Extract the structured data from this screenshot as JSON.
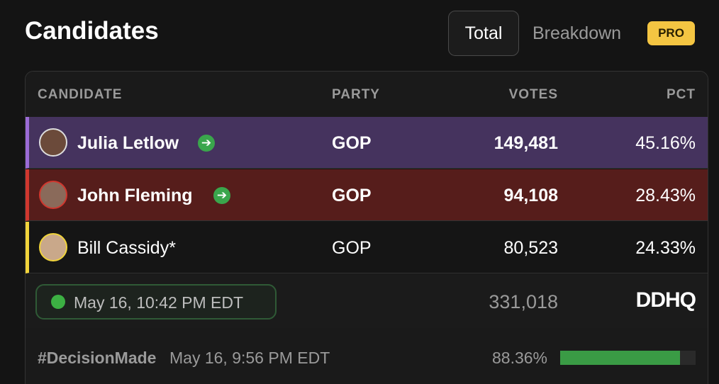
{
  "header": {
    "title": "Candidates",
    "tabs": [
      "Total",
      "Breakdown"
    ],
    "badge": "PRO"
  },
  "table": {
    "columns": [
      "CANDIDATE",
      "PARTY",
      "VOTES",
      "PCT"
    ],
    "rows": [
      [
        "Julia Letlow",
        "GOP",
        "149,481",
        "45.16%"
      ],
      [
        "John Fleming",
        "GOP",
        "94,108",
        "28.43%"
      ],
      [
        "Bill Cassidy*",
        "GOP",
        "80,523",
        "24.33%"
      ]
    ]
  },
  "footer": {
    "updated": "May 16, 10:42 PM EDT",
    "total_votes": "331,018",
    "source": "DDHQ",
    "decision": "#DecisionMade",
    "decision_time": "May 16, 9:56 PM EDT",
    "reporting": {
      "value": 88.36,
      "label": "88.36%"
    }
  }
}
